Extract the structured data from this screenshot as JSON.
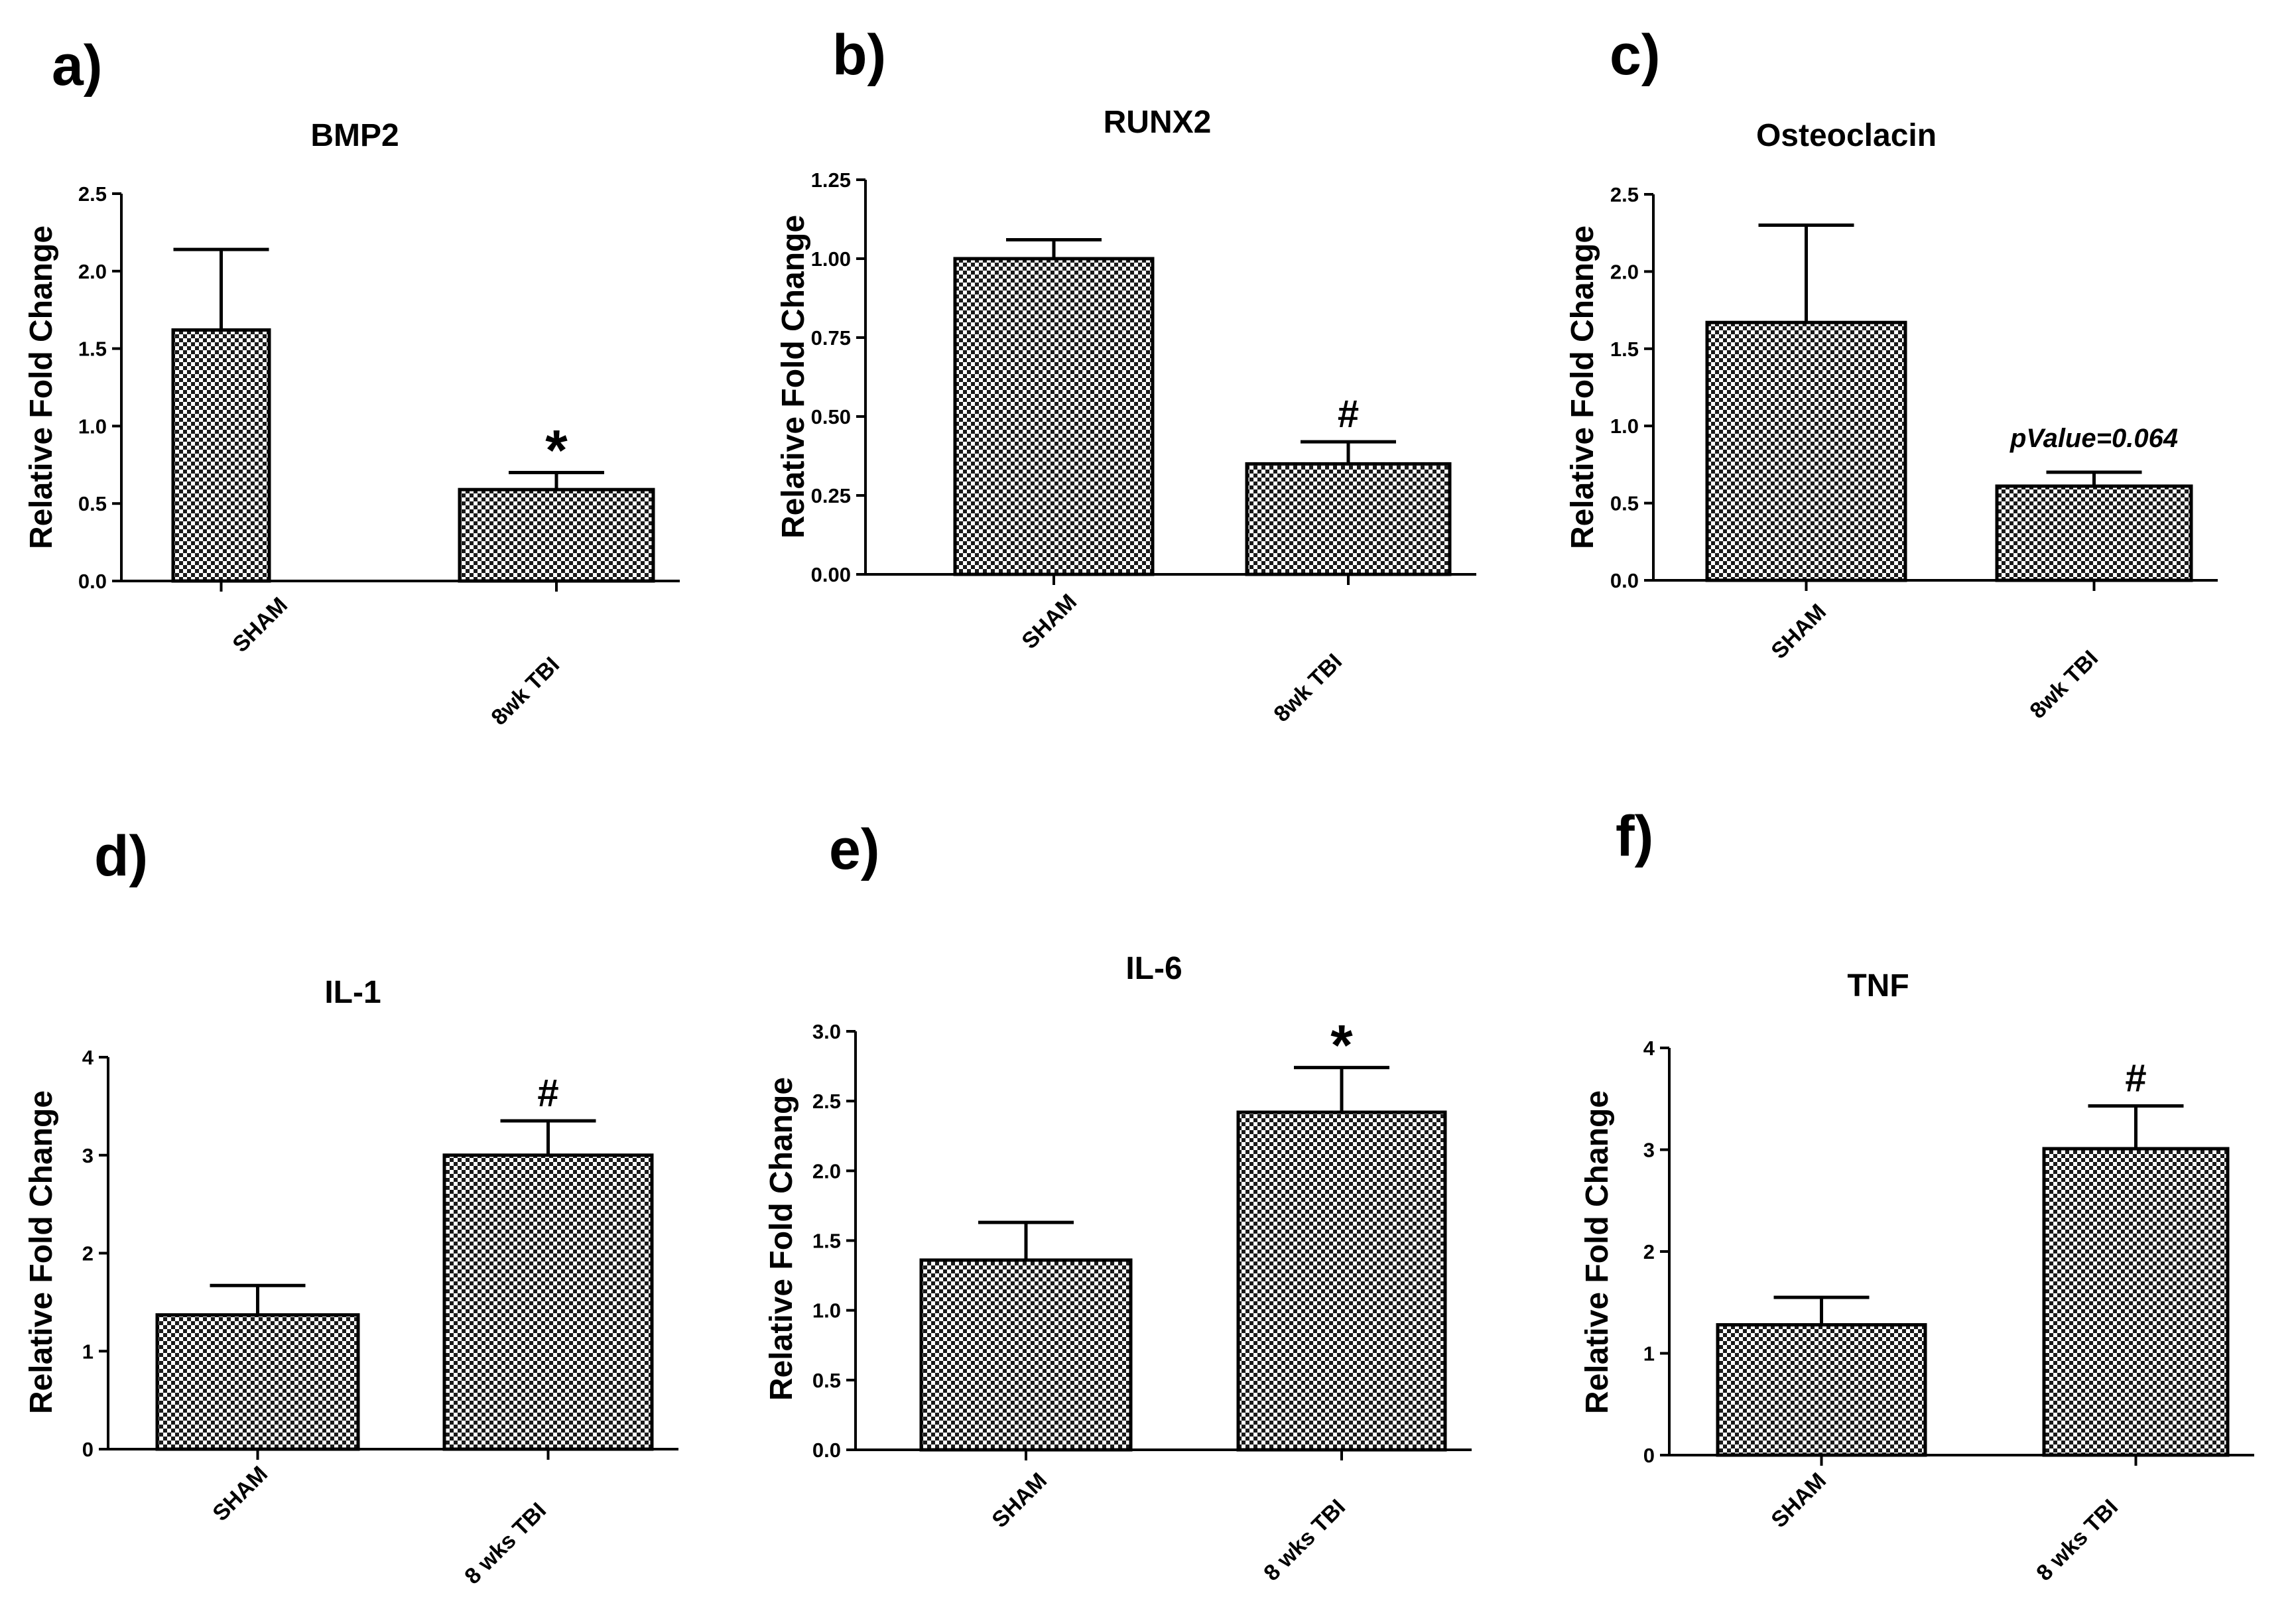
{
  "figure": {
    "colors": {
      "bar_fill": "checker-pattern",
      "stroke": "#000000",
      "background": "#ffffff"
    }
  },
  "chart_data": [
    {
      "id": "a",
      "panel_label": "a)",
      "type": "bar",
      "title": "BMP2",
      "ylabel": "Relative Fold Change",
      "xlabel": "",
      "ylim": [
        0,
        2.5
      ],
      "yticks": [
        "0.0",
        "0.5",
        "1.0",
        "1.5",
        "2.0",
        "2.5"
      ],
      "categories": [
        "SHAM",
        "8wk TBI"
      ],
      "values": [
        1.62,
        0.59
      ],
      "errors": [
        0.52,
        0.11
      ],
      "annotations": [
        "",
        "*"
      ]
    },
    {
      "id": "b",
      "panel_label": "b)",
      "type": "bar",
      "title": "RUNX2",
      "ylabel": "Relative Fold Change",
      "xlabel": "",
      "ylim": [
        0,
        1.25
      ],
      "yticks": [
        "0.00",
        "0.25",
        "0.50",
        "0.75",
        "1.00",
        "1.25"
      ],
      "categories": [
        "SHAM",
        "8wk TBI"
      ],
      "values": [
        1.0,
        0.35
      ],
      "errors": [
        0.06,
        0.07
      ],
      "annotations": [
        "",
        "#"
      ]
    },
    {
      "id": "c",
      "panel_label": "c)",
      "type": "bar",
      "title": "Osteoclacin",
      "ylabel": "Relative Fold Change",
      "xlabel": "",
      "ylim": [
        0,
        2.5
      ],
      "yticks": [
        "0.0",
        "0.5",
        "1.0",
        "1.5",
        "2.0",
        "2.5"
      ],
      "categories": [
        "SHAM",
        "8wk TBI"
      ],
      "values": [
        1.67,
        0.61
      ],
      "errors": [
        0.63,
        0.09
      ],
      "annotations": [
        "",
        "pValue=0.064"
      ]
    },
    {
      "id": "d",
      "panel_label": "d)",
      "type": "bar",
      "title": "IL-1",
      "ylabel": "Relative Fold Change",
      "xlabel": "",
      "ylim": [
        0,
        4
      ],
      "yticks": [
        "0",
        "1",
        "2",
        "3",
        "4"
      ],
      "categories": [
        "SHAM",
        "8 wks TBI"
      ],
      "values": [
        1.37,
        3.0
      ],
      "errors": [
        0.3,
        0.35
      ],
      "annotations": [
        "",
        "#"
      ]
    },
    {
      "id": "e",
      "panel_label": "e)",
      "type": "bar",
      "title": "IL-6",
      "ylabel": "Relative Fold Change",
      "xlabel": "",
      "ylim": [
        0,
        3.0
      ],
      "yticks": [
        "0.0",
        "0.5",
        "1.0",
        "1.5",
        "2.0",
        "2.5",
        "3.0"
      ],
      "categories": [
        "SHAM",
        "8 wks TBI"
      ],
      "values": [
        1.36,
        2.42
      ],
      "errors": [
        0.27,
        0.32
      ],
      "annotations": [
        "",
        "*"
      ]
    },
    {
      "id": "f",
      "panel_label": "f)",
      "type": "bar",
      "title": "TNF",
      "ylabel": "Relative Fold Change",
      "xlabel": "",
      "ylim": [
        0,
        4
      ],
      "yticks": [
        "0",
        "1",
        "2",
        "3",
        "4"
      ],
      "categories": [
        "SHAM",
        "8 wks TBI"
      ],
      "values": [
        1.28,
        3.01
      ],
      "errors": [
        0.27,
        0.42
      ],
      "annotations": [
        "",
        "#"
      ]
    }
  ]
}
